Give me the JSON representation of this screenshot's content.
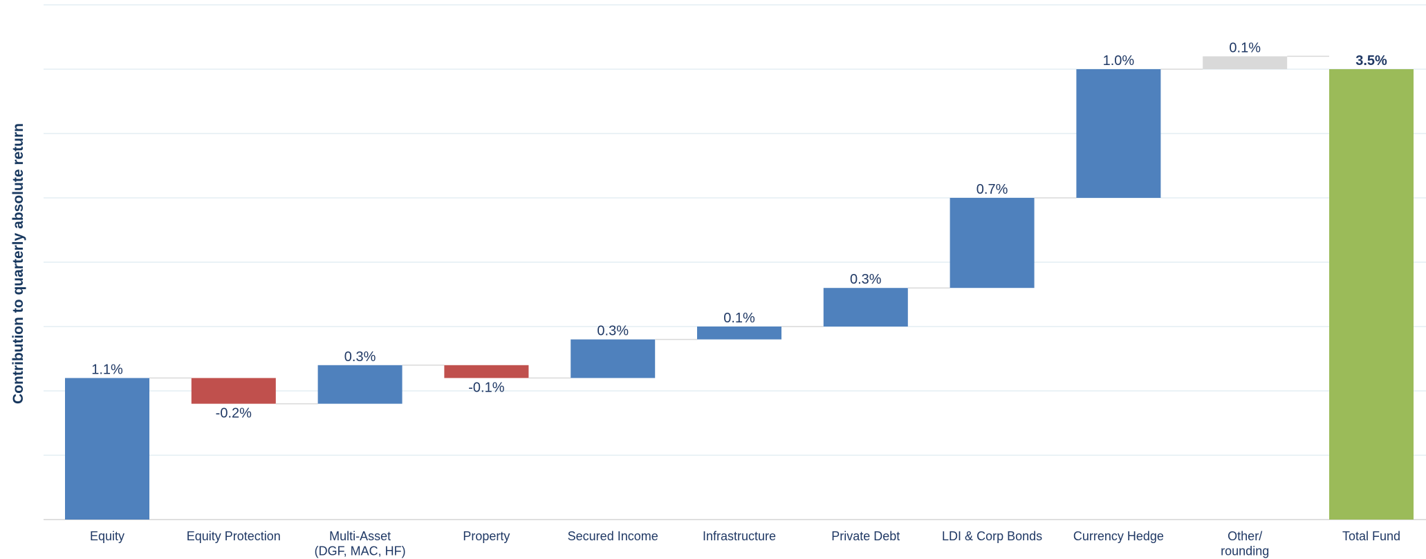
{
  "chart_data": {
    "type": "waterfall",
    "y_label": "Contribution to quarterly absolute return",
    "categories": [
      "Equity",
      "Equity Protection",
      "Multi-Asset\n(DGF, MAC, HF)",
      "Property",
      "Secured Income",
      "Infrastructure",
      "Private Debt",
      "LDI & Corp Bonds",
      "Currency Hedge",
      "Other/\nrounding",
      "Total Fund"
    ],
    "measure": [
      "relative",
      "relative",
      "relative",
      "relative",
      "relative",
      "relative",
      "relative",
      "relative",
      "relative",
      "relative",
      "total"
    ],
    "values": [
      1.1,
      -0.2,
      0.3,
      -0.1,
      0.3,
      0.1,
      0.3,
      0.7,
      1.0,
      0.1,
      3.5
    ],
    "value_labels": [
      "1.1%",
      "-0.2%",
      "0.3%",
      "-0.1%",
      "0.3%",
      "0.1%",
      "0.3%",
      "0.7%",
      "1.0%",
      "0.1%",
      "3.5%"
    ],
    "colors": [
      "#4f81bd",
      "#c0504d",
      "#4f81bd",
      "#c0504d",
      "#4f81bd",
      "#4f81bd",
      "#4f81bd",
      "#4f81bd",
      "#4f81bd",
      "#d9d9d9",
      "#9bbb59"
    ],
    "connector_color": "#d9d9d9",
    "ylim": [
      0,
      4
    ],
    "yticks": [
      0,
      0.5,
      1,
      1.5,
      2,
      2.5,
      3,
      3.5,
      4
    ],
    "grid": true
  }
}
